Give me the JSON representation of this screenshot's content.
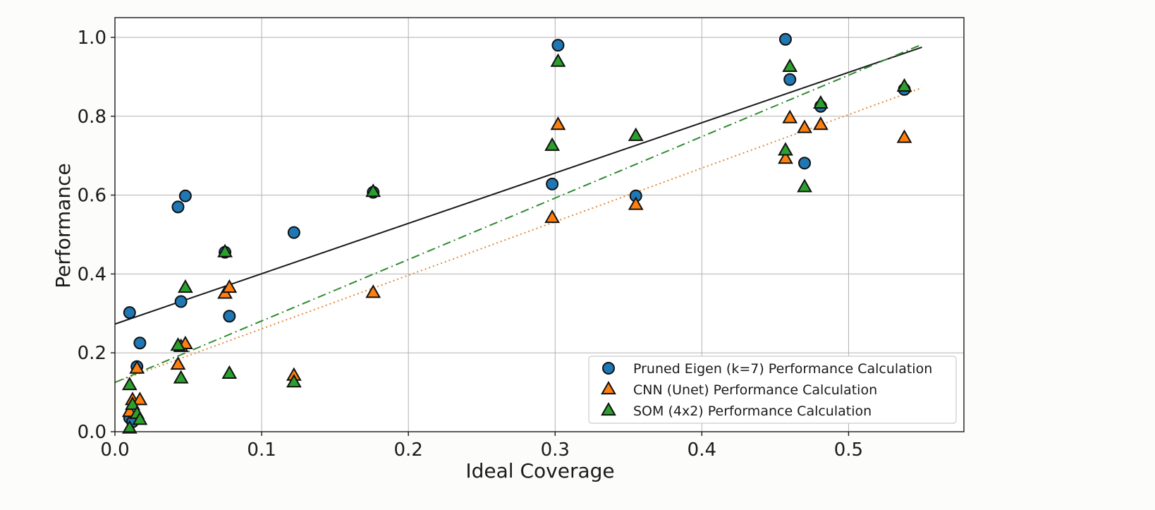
{
  "chart_data": {
    "type": "scatter",
    "title": "",
    "xlabel": "Ideal Coverage",
    "ylabel": "Performance",
    "xlim": [
      0.0,
      0.5786
    ],
    "ylim": [
      0.0,
      1.05
    ],
    "xticks": [
      0.0,
      0.1,
      0.2,
      0.3,
      0.4,
      0.5
    ],
    "xtick_labels": [
      "0.0",
      "0.1",
      "0.2",
      "0.3",
      "0.4",
      "0.5"
    ],
    "yticks": [
      0.0,
      0.2,
      0.4,
      0.6,
      0.8,
      1.0
    ],
    "ytick_labels": [
      "0.0",
      "0.2",
      "0.4",
      "0.6",
      "0.8",
      "1.0"
    ],
    "grid": true,
    "legend_position": "lower-right",
    "series": [
      {
        "name": "Pruned Eigen (k=7) Performance Calculation",
        "marker": "circle",
        "color": "#1f77b4",
        "trend": {
          "style": "solid",
          "color": "#1a1a1a",
          "x": [
            0.0,
            0.55
          ],
          "y": [
            0.273,
            0.975
          ]
        },
        "points": [
          [
            0.01,
            0.302
          ],
          [
            0.01,
            0.035
          ],
          [
            0.012,
            0.025
          ],
          [
            0.015,
            0.165
          ],
          [
            0.017,
            0.225
          ],
          [
            0.043,
            0.57
          ],
          [
            0.045,
            0.33
          ],
          [
            0.048,
            0.598
          ],
          [
            0.075,
            0.455
          ],
          [
            0.078,
            0.293
          ],
          [
            0.122,
            0.505
          ],
          [
            0.176,
            0.607
          ],
          [
            0.298,
            0.628
          ],
          [
            0.302,
            0.98
          ],
          [
            0.355,
            0.598
          ],
          [
            0.457,
            0.995
          ],
          [
            0.46,
            0.893
          ],
          [
            0.47,
            0.681
          ],
          [
            0.481,
            0.825
          ],
          [
            0.538,
            0.868
          ]
        ]
      },
      {
        "name": "CNN (Unet) Performance Calculation",
        "marker": "triangle",
        "color": "#ff7f0e",
        "trend": {
          "style": "dotted",
          "color": "#e08a3c",
          "x": [
            0.0,
            0.55
          ],
          "y": [
            0.125,
            0.872
          ]
        },
        "points": [
          [
            0.01,
            0.05
          ],
          [
            0.012,
            0.08
          ],
          [
            0.015,
            0.16
          ],
          [
            0.017,
            0.08
          ],
          [
            0.043,
            0.17
          ],
          [
            0.045,
            0.215
          ],
          [
            0.048,
            0.222
          ],
          [
            0.075,
            0.35
          ],
          [
            0.078,
            0.365
          ],
          [
            0.122,
            0.142
          ],
          [
            0.176,
            0.352
          ],
          [
            0.298,
            0.542
          ],
          [
            0.302,
            0.778
          ],
          [
            0.355,
            0.575
          ],
          [
            0.457,
            0.692
          ],
          [
            0.46,
            0.795
          ],
          [
            0.47,
            0.77
          ],
          [
            0.481,
            0.778
          ],
          [
            0.538,
            0.745
          ]
        ]
      },
      {
        "name": "SOM (4x2) Performance Calculation",
        "marker": "triangle",
        "color": "#2ca02c",
        "trend": {
          "style": "dashdot",
          "color": "#2e8b2e",
          "x": [
            0.0,
            0.55
          ],
          "y": [
            0.125,
            0.982
          ]
        },
        "points": [
          [
            0.01,
            0.118
          ],
          [
            0.01,
            0.008
          ],
          [
            0.012,
            0.068
          ],
          [
            0.015,
            0.045
          ],
          [
            0.017,
            0.03
          ],
          [
            0.043,
            0.218
          ],
          [
            0.045,
            0.135
          ],
          [
            0.048,
            0.365
          ],
          [
            0.075,
            0.455
          ],
          [
            0.078,
            0.147
          ],
          [
            0.122,
            0.125
          ],
          [
            0.176,
            0.608
          ],
          [
            0.298,
            0.725
          ],
          [
            0.302,
            0.938
          ],
          [
            0.355,
            0.75
          ],
          [
            0.457,
            0.713
          ],
          [
            0.46,
            0.925
          ],
          [
            0.47,
            0.62
          ],
          [
            0.481,
            0.832
          ],
          [
            0.538,
            0.875
          ]
        ]
      }
    ]
  }
}
